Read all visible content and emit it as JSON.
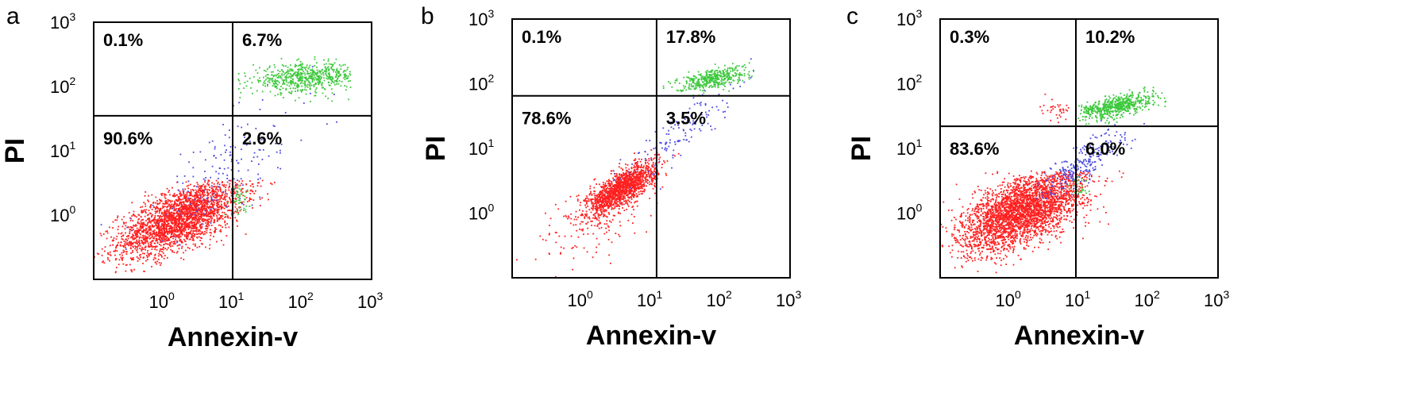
{
  "chart_data": [
    {
      "panel": "a",
      "type": "scatter",
      "title": "",
      "xlabel": "Annexin-v",
      "ylabel": "PI",
      "x_scale": "log",
      "y_scale": "log",
      "xlim": [
        0.1,
        1000
      ],
      "ylim": [
        0.1,
        1000
      ],
      "x_ticks": [
        {
          "base": "10",
          "exp": "0",
          "value": 1
        },
        {
          "base": "10",
          "exp": "1",
          "value": 10
        },
        {
          "base": "10",
          "exp": "2",
          "value": 100
        },
        {
          "base": "10",
          "exp": "3",
          "value": 1000
        }
      ],
      "y_ticks": [
        {
          "base": "10",
          "exp": "0",
          "value": 1
        },
        {
          "base": "10",
          "exp": "1",
          "value": 10
        },
        {
          "base": "10",
          "exp": "2",
          "value": 100
        },
        {
          "base": "10",
          "exp": "3",
          "value": 1000
        }
      ],
      "gate": {
        "x": 10,
        "y": 35
      },
      "quadrants": {
        "upper_left": "0.1%",
        "upper_right": "6.7%",
        "lower_left": "90.6%",
        "lower_right": "2.6%"
      },
      "populations": [
        {
          "color": "#ff2020",
          "count": 2600,
          "center": [
            1.8,
            0.9
          ],
          "spread": [
            0.45,
            0.3
          ],
          "corr": 0.65,
          "yclip": [
            0.12,
            3.5
          ]
        },
        {
          "color": "#4a4adf",
          "count": 170,
          "center": [
            8,
            5
          ],
          "spread": [
            0.65,
            0.55
          ],
          "corr": 0.75
        },
        {
          "color": "#3cc83c",
          "count": 620,
          "center": [
            110,
            135
          ],
          "spread": [
            0.38,
            0.11
          ],
          "corr": 0.2,
          "xclip": [
            11,
            500
          ]
        },
        {
          "color": "#3cc83c",
          "count": 45,
          "center": [
            12,
            1.8
          ],
          "spread": [
            0.08,
            0.1
          ],
          "corr": 0
        }
      ]
    },
    {
      "panel": "b",
      "type": "scatter",
      "title": "",
      "xlabel": "Annexin-v",
      "ylabel": "PI",
      "x_scale": "log",
      "y_scale": "log",
      "xlim": [
        0.1,
        1000
      ],
      "ylim": [
        0.1,
        1000
      ],
      "x_ticks": [
        {
          "base": "10",
          "exp": "0",
          "value": 1
        },
        {
          "base": "10",
          "exp": "1",
          "value": 10
        },
        {
          "base": "10",
          "exp": "2",
          "value": 100
        },
        {
          "base": "10",
          "exp": "3",
          "value": 1000
        }
      ],
      "y_ticks": [
        {
          "base": "10",
          "exp": "0",
          "value": 1
        },
        {
          "base": "10",
          "exp": "1",
          "value": 10
        },
        {
          "base": "10",
          "exp": "2",
          "value": 100
        },
        {
          "base": "10",
          "exp": "3",
          "value": 1000
        }
      ],
      "gate": {
        "x": 12,
        "y": 65
      },
      "quadrants": {
        "upper_left": "0.1%",
        "upper_right": "17.8%",
        "lower_left": "78.6%",
        "lower_right": "3.5%"
      },
      "populations": [
        {
          "color": "#ff2020",
          "count": 1500,
          "center": [
            3.8,
            2.4
          ],
          "spread": [
            0.25,
            0.2
          ],
          "corr": 0.75
        },
        {
          "color": "#ff2020",
          "count": 130,
          "center": [
            1.6,
            0.7
          ],
          "spread": [
            0.4,
            0.35
          ],
          "corr": 0.5
        },
        {
          "color": "#4a4adf",
          "count": 140,
          "center": [
            25,
            17
          ],
          "spread": [
            0.38,
            0.35
          ],
          "corr": 0.85
        },
        {
          "color": "#3cc83c",
          "count": 420,
          "center": [
            75,
            120
          ],
          "spread": [
            0.25,
            0.09
          ],
          "corr": 0.6,
          "xclip": [
            15,
            330
          ]
        }
      ]
    },
    {
      "panel": "c",
      "type": "scatter",
      "title": "",
      "xlabel": "Annexin-v",
      "ylabel": "PI",
      "x_scale": "log",
      "y_scale": "log",
      "xlim": [
        0.1,
        1000
      ],
      "ylim": [
        0.1,
        1000
      ],
      "x_ticks": [
        {
          "base": "10",
          "exp": "0",
          "value": 1
        },
        {
          "base": "10",
          "exp": "1",
          "value": 10
        },
        {
          "base": "10",
          "exp": "2",
          "value": 100
        },
        {
          "base": "10",
          "exp": "3",
          "value": 1000
        }
      ],
      "y_ticks": [
        {
          "base": "10",
          "exp": "0",
          "value": 1
        },
        {
          "base": "10",
          "exp": "1",
          "value": 10
        },
        {
          "base": "10",
          "exp": "2",
          "value": 100
        },
        {
          "base": "10",
          "exp": "3",
          "value": 1000
        }
      ],
      "gate": {
        "x": 9,
        "y": 22
      },
      "quadrants": {
        "upper_left": "0.3%",
        "upper_right": "10.2%",
        "lower_left": "83.6%",
        "lower_right": "6.0%"
      },
      "populations": [
        {
          "color": "#ff2020",
          "count": 3200,
          "center": [
            1.6,
            1.1
          ],
          "spread": [
            0.45,
            0.32
          ],
          "corr": 0.6,
          "yclip": [
            0.12,
            4.5
          ]
        },
        {
          "color": "#4a4adf",
          "count": 260,
          "center": [
            12,
            6
          ],
          "spread": [
            0.3,
            0.25
          ],
          "corr": 0.8
        },
        {
          "color": "#3cc83c",
          "count": 620,
          "center": [
            35,
            45
          ],
          "spread": [
            0.28,
            0.1
          ],
          "corr": 0.6,
          "xclip": [
            9.5,
            180
          ]
        },
        {
          "color": "#ff2020",
          "count": 35,
          "center": [
            5,
            40
          ],
          "spread": [
            0.12,
            0.08
          ],
          "corr": 0
        },
        {
          "color": "#3cc83c",
          "count": 30,
          "center": [
            10,
            2.5
          ],
          "spread": [
            0.06,
            0.08
          ],
          "corr": 0
        }
      ]
    }
  ]
}
